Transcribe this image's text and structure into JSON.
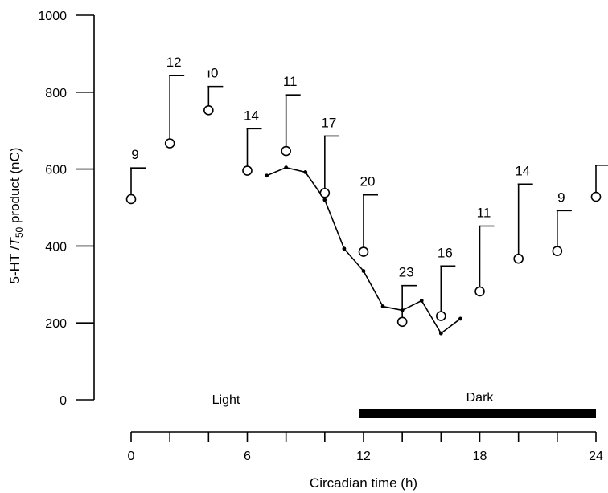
{
  "chart_data": {
    "type": "scatter",
    "title": "",
    "xlabel": "Circadian time (h)",
    "ylabel_parts": [
      "5-HT /",
      "T",
      "50",
      " product (nC)"
    ],
    "xlim": [
      0,
      24
    ],
    "ylim": [
      0,
      1000
    ],
    "x_ticks": [
      0,
      2,
      4,
      6,
      8,
      10,
      12,
      14,
      16,
      18,
      20,
      22,
      24
    ],
    "x_tick_labels": [
      "0",
      "6",
      "12",
      "18",
      "24"
    ],
    "y_ticks": [
      0,
      200,
      400,
      600,
      800,
      1000
    ],
    "y_tick_labels": [
      "0",
      "200",
      "400",
      "600",
      "800",
      "1000"
    ],
    "grid": false,
    "series": [
      {
        "marker": "open-circle",
        "x": [
          0,
          2,
          4,
          6,
          8,
          10,
          12,
          14,
          16,
          18,
          20,
          22,
          24
        ],
        "y": [
          522,
          667,
          753,
          596,
          647,
          538,
          385,
          203,
          218,
          282,
          367,
          387,
          528
        ],
        "error_upper": [
          603,
          843,
          815,
          705,
          793,
          686,
          533,
          297,
          348,
          452,
          561,
          492,
          610
        ],
        "n_labels": [
          "9",
          "12",
          "ı0",
          "14",
          "11",
          "17",
          "20",
          "23",
          "16",
          "11",
          "14",
          "9",
          ""
        ]
      },
      {
        "marker": "dot-line",
        "x": [
          7,
          8,
          9,
          10,
          11,
          12,
          13,
          14,
          15,
          16,
          17
        ],
        "y": [
          583,
          604,
          592,
          520,
          393,
          335,
          243,
          233,
          258,
          173,
          211
        ]
      }
    ],
    "annotations": {
      "light_label": "Light",
      "dark_label": "Dark",
      "dark_bar_x": [
        12,
        24
      ]
    }
  }
}
